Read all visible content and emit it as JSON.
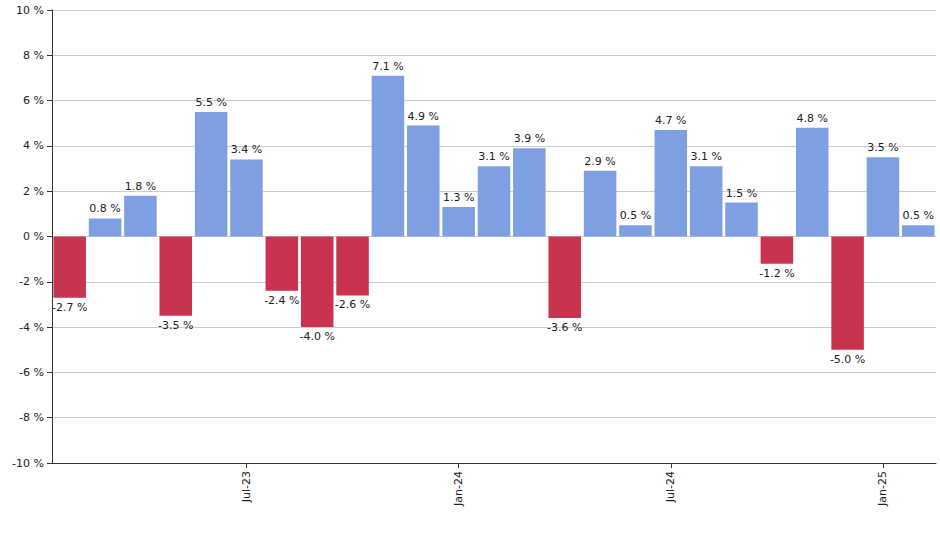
{
  "chart_data": {
    "type": "bar",
    "categories": [
      null,
      null,
      null,
      null,
      null,
      "Jul-23",
      null,
      null,
      null,
      null,
      null,
      "Jan-24",
      null,
      null,
      null,
      null,
      null,
      "Jul-24",
      null,
      null,
      null,
      null,
      null,
      "Jan-25",
      null
    ],
    "values": [
      -2.7,
      0.8,
      1.8,
      -3.5,
      5.5,
      3.4,
      -2.4,
      -4.0,
      -2.6,
      7.1,
      4.9,
      1.3,
      3.1,
      3.9,
      -3.6,
      2.9,
      0.5,
      4.7,
      3.1,
      1.5,
      -1.2,
      4.8,
      -5.0,
      3.5,
      0.5
    ],
    "value_labels": [
      "-2.7 %",
      "0.8 %",
      "1.8 %",
      "-3.5 %",
      "5.5 %",
      "3.4 %",
      "-2.4 %",
      "-4.0 %",
      "-2.6 %",
      "7.1 %",
      "4.9 %",
      "1.3 %",
      "3.1 %",
      "3.9 %",
      "-3.6 %",
      "2.9 %",
      "0.5 %",
      "4.7 %",
      "3.1 %",
      "1.5 %",
      "-1.2 %",
      "4.8 %",
      "-5.0 %",
      "3.5 %",
      "0.5 %"
    ],
    "colors": [
      "#c8334f",
      "#7f9fe3",
      "#7f9fe3",
      "#c8334f",
      "#7f9fe3",
      "#7f9fe3",
      "#c8334f",
      "#c8334f",
      "#c8334f",
      "#7f9fe3",
      "#7f9fe3",
      "#7f9fe3",
      "#7f9fe3",
      "#7f9fe3",
      "#c8334f",
      "#7f9fe3",
      "#7f9fe3",
      "#7f9fe3",
      "#7f9fe3",
      "#7f9fe3",
      "#c8334f",
      "#7f9fe3",
      "#c8334f",
      "#7f9fe3",
      "#7f9fe3"
    ],
    "ylim": [
      -10,
      10
    ],
    "yticks": [
      {
        "value": -10,
        "label": "-10 %"
      },
      {
        "value": -8,
        "label": "-8 %"
      },
      {
        "value": -6,
        "label": "-6 %"
      },
      {
        "value": -4,
        "label": "-4 %"
      },
      {
        "value": -2,
        "label": "-2 %"
      },
      {
        "value": 0,
        "label": "0 %"
      },
      {
        "value": 2,
        "label": "2 %"
      },
      {
        "value": 4,
        "label": "4 %"
      },
      {
        "value": 6,
        "label": "6 %"
      },
      {
        "value": 8,
        "label": "8 %"
      },
      {
        "value": 10,
        "label": "10 %"
      }
    ],
    "grid": true,
    "data_labels": true
  }
}
